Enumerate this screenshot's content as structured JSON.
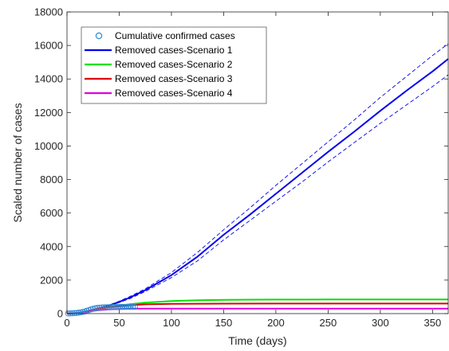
{
  "chart_data": {
    "type": "line",
    "xlabel": "Time (days)",
    "ylabel": "Scaled number of cases",
    "xlim": [
      0,
      365
    ],
    "ylim": [
      0,
      18000
    ],
    "xticks": [
      0,
      50,
      100,
      150,
      200,
      250,
      300,
      350
    ],
    "yticks": [
      0,
      2000,
      4000,
      6000,
      8000,
      10000,
      12000,
      14000,
      16000,
      18000
    ],
    "grid": false,
    "legend_position": "top-left",
    "scatter": {
      "name": "Cumulative confirmed cases",
      "color": "#2e8bd8",
      "x": [
        1,
        3,
        5,
        7,
        9,
        11,
        13,
        15,
        17,
        19,
        21,
        23,
        25,
        27,
        29,
        31,
        33,
        35,
        37,
        39,
        41,
        43,
        45,
        47,
        49,
        51,
        53,
        55,
        57,
        59,
        61,
        63,
        65
      ],
      "y": [
        10,
        15,
        20,
        30,
        40,
        55,
        75,
        100,
        130,
        170,
        210,
        250,
        290,
        320,
        340,
        355,
        365,
        372,
        378,
        382,
        386,
        389,
        392,
        394,
        396,
        398,
        399,
        400,
        401,
        402,
        403,
        404,
        405
      ]
    },
    "series": [
      {
        "name": "Removed cases-Scenario 1",
        "color": "#0000ee",
        "x": [
          0,
          10,
          20,
          30,
          40,
          50,
          60,
          75,
          100,
          125,
          150,
          175,
          200,
          225,
          250,
          275,
          300,
          325,
          350,
          365
        ],
        "y": [
          0,
          40,
          150,
          300,
          470,
          700,
          950,
          1400,
          2300,
          3400,
          4700,
          5900,
          7150,
          8400,
          9650,
          10850,
          12100,
          13300,
          14450,
          15200
        ],
        "upper": [
          0,
          40,
          155,
          315,
          500,
          740,
          1010,
          1480,
          2450,
          3650,
          5000,
          6300,
          7650,
          8950,
          10250,
          11550,
          12900,
          14150,
          15400,
          16100
        ],
        "lower": [
          0,
          40,
          145,
          285,
          440,
          660,
          890,
          1320,
          2150,
          3150,
          4400,
          5550,
          6700,
          7850,
          9050,
          10200,
          11350,
          12450,
          13550,
          14250
        ]
      },
      {
        "name": "Removed cases-Scenario 2",
        "color": "#00e400",
        "x": [
          0,
          10,
          20,
          30,
          40,
          50,
          60,
          75,
          100,
          125,
          150,
          175,
          200,
          250,
          300,
          365
        ],
        "y": [
          0,
          40,
          150,
          290,
          400,
          480,
          560,
          650,
          750,
          800,
          820,
          830,
          835,
          840,
          840,
          840
        ]
      },
      {
        "name": "Removed cases-Scenario 3",
        "color": "#e00000",
        "x": [
          0,
          10,
          20,
          30,
          40,
          50,
          60,
          75,
          100,
          125,
          150,
          200,
          250,
          300,
          365
        ],
        "y": [
          0,
          40,
          150,
          280,
          380,
          440,
          500,
          550,
          580,
          590,
          595,
          600,
          600,
          600,
          600
        ]
      },
      {
        "name": "Removed cases-Scenario 4",
        "color": "#e000e0",
        "x": [
          0,
          10,
          20,
          30,
          40,
          50,
          60,
          75,
          100,
          150,
          200,
          250,
          300,
          365
        ],
        "y": [
          0,
          35,
          120,
          200,
          250,
          275,
          290,
          298,
          300,
          300,
          300,
          300,
          300,
          300
        ]
      }
    ]
  }
}
